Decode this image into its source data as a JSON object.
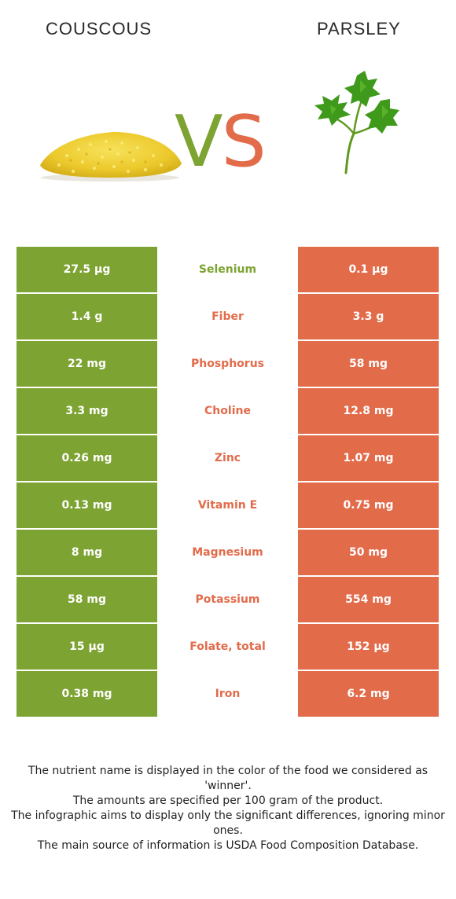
{
  "left_food": {
    "name": "COUSCOUS",
    "color": "#7da332"
  },
  "right_food": {
    "name": "PARSLEY",
    "color": "#e26b4a"
  },
  "vs": {
    "v": "V",
    "s": "S"
  },
  "rows": [
    {
      "left": "27.5 µg",
      "nutrient": "Selenium",
      "right": "0.1 µg",
      "winner": "left"
    },
    {
      "left": "1.4 g",
      "nutrient": "Fiber",
      "right": "3.3 g",
      "winner": "right"
    },
    {
      "left": "22 mg",
      "nutrient": "Phosphorus",
      "right": "58 mg",
      "winner": "right"
    },
    {
      "left": "3.3 mg",
      "nutrient": "Choline",
      "right": "12.8 mg",
      "winner": "right"
    },
    {
      "left": "0.26 mg",
      "nutrient": "Zinc",
      "right": "1.07 mg",
      "winner": "right"
    },
    {
      "left": "0.13 mg",
      "nutrient": "Vitamin E",
      "right": "0.75 mg",
      "winner": "right"
    },
    {
      "left": "8 mg",
      "nutrient": "Magnesium",
      "right": "50 mg",
      "winner": "right"
    },
    {
      "left": "58 mg",
      "nutrient": "Potassium",
      "right": "554 mg",
      "winner": "right"
    },
    {
      "left": "15 µg",
      "nutrient": "Folate, total",
      "right": "152 µg",
      "winner": "right"
    },
    {
      "left": "0.38 mg",
      "nutrient": "Iron",
      "right": "6.2 mg",
      "winner": "right"
    }
  ],
  "footnote": {
    "line1": "The nutrient name is displayed in the color of the food we considered as 'winner'.",
    "line2": "The amounts are specified per 100 gram of the product.",
    "line3": "The infographic aims to display only the significant differences, ignoring minor ones.",
    "line4": "The main source of information is USDA Food Composition Database."
  }
}
